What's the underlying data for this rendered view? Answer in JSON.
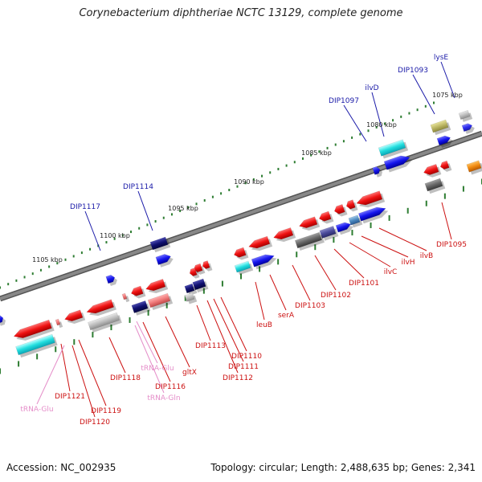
{
  "title": "Corynebacterium diphtheriae NCTC 13129, complete genome",
  "footer": {
    "accession": "Accession: NC_002935",
    "summary": "Topology: circular; Length: 2,488,635 bp; Genes: 2,341"
  },
  "colors": {
    "backbone": "#888888",
    "tick": "#2e7d32",
    "forward_label": "#1a1aa8",
    "reverse_label": "#cc1111",
    "rna_label": "#e58ec9"
  },
  "kbp_labels": [
    "1075 kbp",
    "1080 kbp",
    "1085 kbp",
    "1090 kbp",
    "1095 kbp",
    "1100 kbp",
    "1105 kbp"
  ],
  "forward_labels": [
    "lysE",
    "DIP1093",
    "ilvD",
    "DIP1097",
    "DIP1114",
    "DIP1117"
  ],
  "reverse_labels": [
    "DIP1095",
    "ilvB",
    "ilvH",
    "ilvC",
    "DIP1101",
    "DIP1102",
    "DIP1103",
    "serA",
    "leuB",
    "DIP1110",
    "DIP1111",
    "DIP1112",
    "DIP1113",
    "gltX",
    "DIP1116",
    "DIP1118",
    "DIP1119",
    "DIP1120",
    "DIP1121"
  ],
  "rna_labels": [
    "tRNA-Glu",
    "tRNA-Gln",
    "tRNA-Glu"
  ]
}
